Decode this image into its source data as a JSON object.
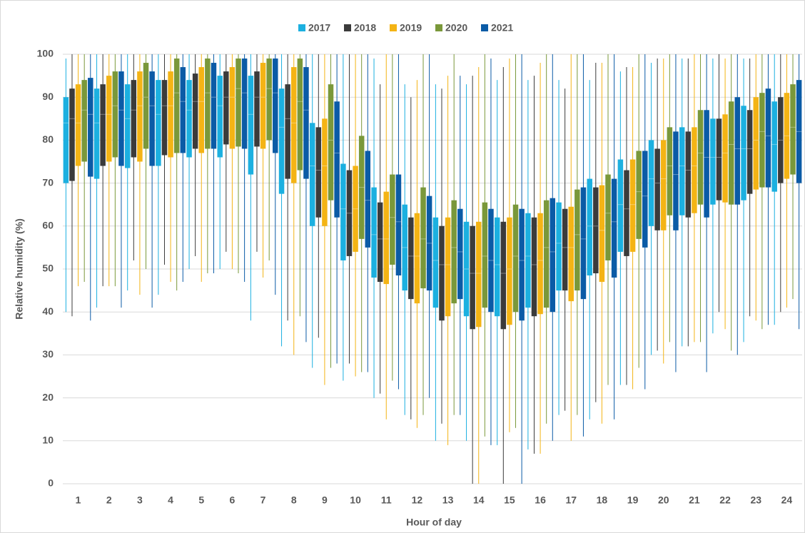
{
  "chart_data": {
    "type": "box",
    "y_label": "Relative humidity (%)",
    "x_label": "Hour of day",
    "categories": [
      "1",
      "2",
      "3",
      "4",
      "5",
      "6",
      "7",
      "8",
      "9",
      "10",
      "11",
      "12",
      "13",
      "14",
      "15",
      "16",
      "17",
      "18",
      "19",
      "20",
      "21",
      "22",
      "23",
      "24"
    ],
    "ylim": [
      0,
      100
    ],
    "yticks": [
      0,
      10,
      20,
      30,
      40,
      50,
      60,
      70,
      80,
      90,
      100
    ],
    "grid": true,
    "legend": "top",
    "series": [
      {
        "name": "2017",
        "color": "#1cb0e0",
        "min": [
          40,
          41,
          45,
          44,
          50,
          50,
          38,
          32,
          27,
          24,
          20,
          16,
          10,
          10,
          9,
          8,
          16,
          15,
          23,
          30,
          32,
          35,
          33,
          37
        ],
        "q1": [
          70,
          71,
          73.5,
          74,
          76,
          76,
          72,
          67.5,
          60,
          52,
          48,
          45,
          41,
          39,
          39,
          41,
          45,
          48.5,
          54,
          60,
          62.5,
          65,
          66,
          68
        ],
        "median": [
          84,
          84,
          85,
          86,
          87,
          88,
          86,
          83,
          74,
          64,
          58,
          55,
          52,
          50,
          51,
          53,
          56,
          60,
          65,
          71,
          74,
          76,
          78,
          79
        ],
        "q3": [
          90,
          92,
          93,
          94,
          94,
          95,
          95,
          92,
          84,
          74.5,
          69,
          65,
          62,
          61,
          62,
          63,
          65.5,
          71,
          75.5,
          80,
          83,
          85,
          88,
          89
        ],
        "max": [
          99,
          100,
          100,
          100,
          100,
          100,
          100,
          100,
          100,
          100,
          99,
          93,
          93,
          93,
          94,
          94,
          94,
          94,
          96,
          98,
          99,
          99,
          99,
          100
        ]
      },
      {
        "name": "2018",
        "color": "#3b3b3b",
        "min": [
          39,
          46,
          52,
          51,
          53,
          54,
          54,
          38,
          34,
          28,
          21,
          15,
          14,
          0,
          0,
          7,
          17,
          19,
          23,
          31,
          32,
          40,
          39,
          40
        ],
        "q1": [
          70.5,
          74,
          76,
          76.5,
          78,
          79,
          78.5,
          71,
          62,
          53,
          47,
          43,
          38,
          36,
          36,
          39,
          45,
          49,
          53,
          59,
          62,
          66,
          67.5,
          70
        ],
        "median": [
          85,
          86,
          87,
          88,
          89,
          90,
          90,
          85,
          73,
          63,
          57,
          53,
          51,
          49,
          49,
          51,
          55,
          60,
          64,
          70,
          73,
          76,
          78,
          80
        ],
        "q3": [
          92,
          93,
          94,
          94,
          95.5,
          96,
          96,
          93,
          83,
          73,
          65.5,
          62,
          60,
          60,
          61,
          62,
          64,
          69,
          73,
          78,
          82,
          85,
          87,
          90
        ],
        "max": [
          100,
          100,
          100,
          100,
          100,
          100,
          100,
          100,
          100,
          100,
          93,
          90,
          92,
          95,
          97,
          95,
          92,
          98,
          97,
          99,
          99,
          100,
          99,
          100
        ]
      },
      {
        "name": "2019",
        "color": "#f4b415",
        "min": [
          46,
          46,
          44,
          47,
          47,
          50,
          48,
          30,
          23,
          25,
          15,
          13,
          9,
          0,
          12,
          7,
          10,
          14,
          22,
          28,
          33,
          36,
          38,
          41
        ],
        "q1": [
          74,
          75,
          75,
          76,
          77,
          78,
          78,
          70,
          60,
          54,
          46.5,
          42,
          39,
          36.5,
          37,
          39.5,
          42.5,
          47,
          54,
          59,
          63,
          65.5,
          68.5,
          71
        ],
        "median": [
          84,
          86,
          88,
          88,
          89,
          90,
          90,
          84,
          74,
          64,
          57,
          53,
          51,
          49,
          50,
          52,
          55,
          59,
          65,
          71,
          74,
          77,
          80,
          81
        ],
        "q3": [
          93,
          95,
          96,
          96,
          97,
          97,
          98,
          97,
          85,
          74,
          68,
          63,
          62,
          61,
          62,
          63,
          64.5,
          69.5,
          75.5,
          80,
          83,
          86,
          90,
          91
        ],
        "max": [
          100,
          100,
          100,
          100,
          100,
          100,
          100,
          100,
          100,
          100,
          100,
          94,
          95,
          97,
          99,
          98,
          100,
          98,
          97,
          99,
          100,
          99,
          100,
          100
        ]
      },
      {
        "name": "2020",
        "color": "#7a983a",
        "min": [
          47,
          46,
          50,
          45,
          49,
          49,
          52,
          39,
          27,
          26,
          24,
          16,
          16,
          11,
          13,
          14,
          16,
          23,
          27,
          33,
          33,
          31,
          36,
          43
        ],
        "q1": [
          75,
          76,
          78,
          77,
          78,
          78.5,
          80,
          73,
          66,
          57,
          51,
          45.5,
          42,
          41,
          40,
          41,
          45,
          52,
          57,
          62.5,
          65,
          65,
          69,
          72
        ],
        "median": [
          87,
          88,
          90,
          91,
          91,
          92,
          92,
          89,
          80,
          69,
          62,
          57,
          55,
          53,
          53,
          55,
          58,
          63,
          68,
          74,
          77,
          79,
          82,
          83
        ],
        "q3": [
          94,
          96,
          98,
          99,
          99,
          99,
          99,
          99,
          93,
          81,
          72,
          69,
          66,
          65.5,
          65,
          66,
          68.5,
          72,
          77.5,
          83,
          87,
          89,
          91,
          93
        ],
        "max": [
          100,
          100,
          100,
          100,
          100,
          100,
          100,
          100,
          100,
          100,
          100,
          100,
          100,
          100,
          100,
          100,
          100,
          100,
          100,
          100,
          100,
          100,
          100,
          100
        ]
      },
      {
        "name": "2021",
        "color": "#0b5ba6",
        "min": [
          38,
          41,
          41,
          47,
          49,
          47,
          44,
          33,
          28,
          26,
          22,
          20,
          16,
          9,
          0,
          10,
          11,
          15,
          22,
          26,
          26,
          30,
          37,
          36
        ],
        "q1": [
          71.5,
          74,
          74,
          77,
          78,
          78,
          77,
          71,
          62,
          55,
          48.5,
          45,
          43,
          40,
          38,
          40,
          43,
          48,
          55,
          59,
          62,
          65,
          69,
          70
        ],
        "median": [
          86,
          87,
          88,
          89,
          90,
          91,
          91,
          87,
          77,
          66,
          61,
          56,
          54,
          52,
          52,
          54,
          57,
          61,
          67,
          72,
          76,
          78,
          81,
          82
        ],
        "q3": [
          94.5,
          96,
          96,
          97,
          98,
          99,
          99,
          97,
          89,
          77.5,
          72,
          67,
          64,
          64,
          64,
          66.5,
          69,
          71,
          77.5,
          82,
          87,
          90,
          92,
          94
        ],
        "max": [
          100,
          100,
          100,
          100,
          100,
          100,
          100,
          100,
          100,
          100,
          100,
          100,
          95,
          99,
          100,
          100,
          100,
          100,
          100,
          100,
          100,
          100,
          100,
          100
        ]
      }
    ]
  }
}
